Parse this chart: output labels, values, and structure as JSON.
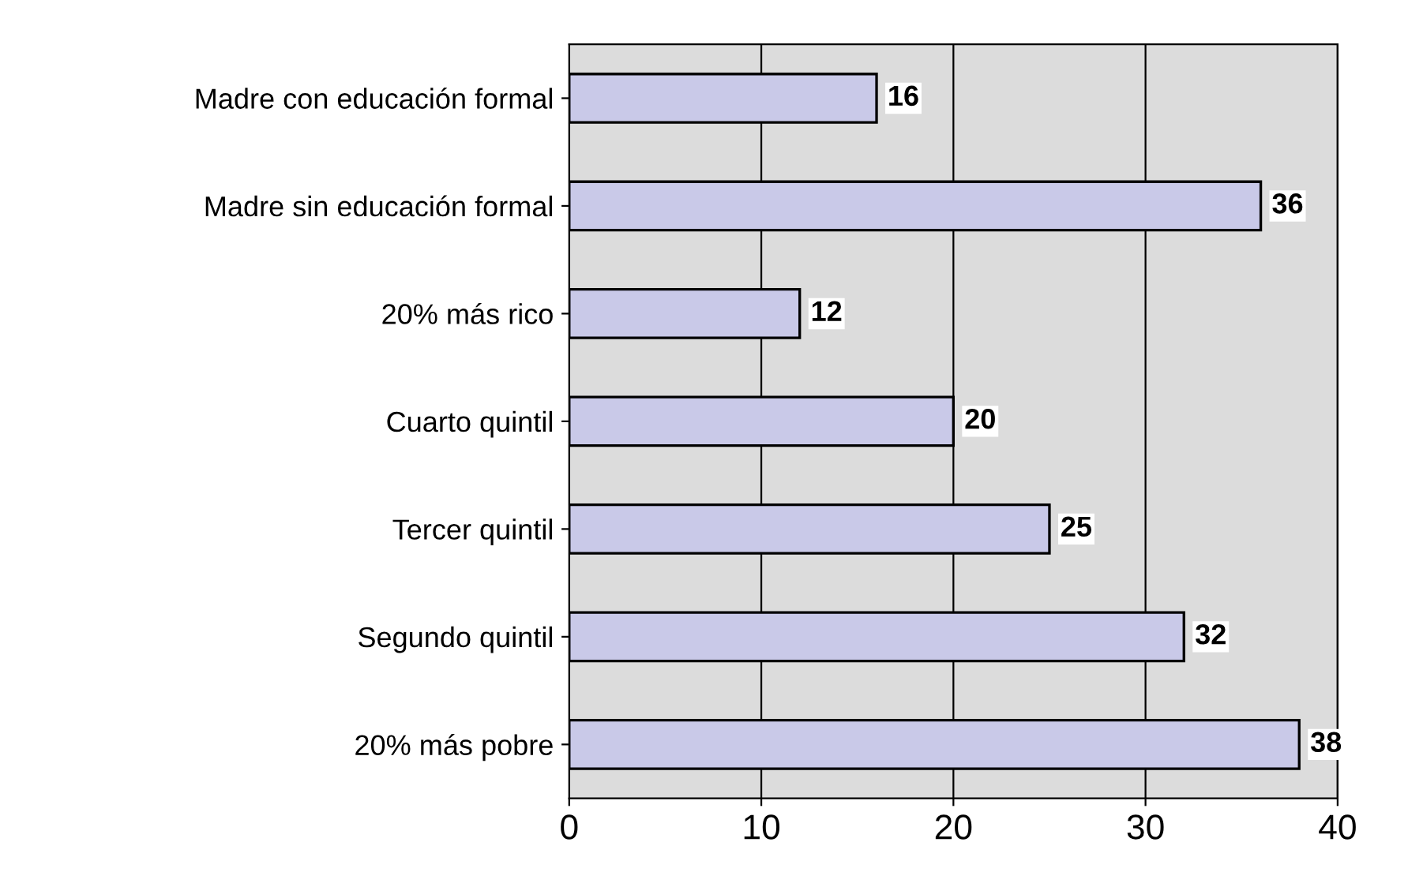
{
  "chart_data": {
    "type": "bar",
    "orientation": "horizontal",
    "categories": [
      "Madre con educación formal",
      "Madre sin educación formal",
      "20% más rico",
      "Cuarto quintil",
      "Tercer quintil",
      "Segundo quintil",
      "20% más pobre"
    ],
    "values": [
      16,
      36,
      12,
      20,
      25,
      32,
      38
    ],
    "color": "#c9c9e8",
    "xlim": [
      0,
      40
    ],
    "xticks": [
      0,
      10,
      20,
      30,
      40
    ],
    "grid": "x",
    "data_labels": true
  }
}
